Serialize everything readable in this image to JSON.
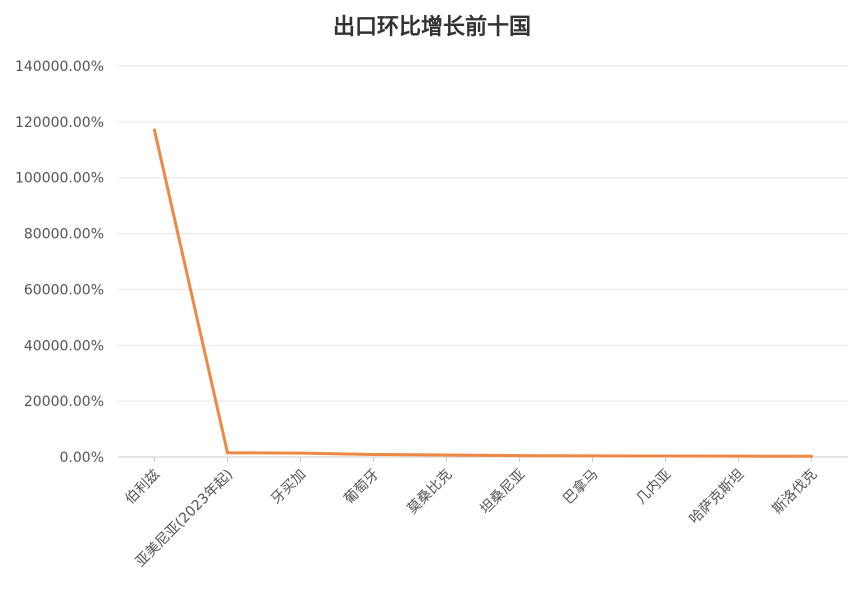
{
  "chart_data": {
    "type": "line",
    "title": "出口环比增长前十国",
    "xlabel": "",
    "ylabel": "",
    "categories": [
      "伯利兹",
      "亚美尼亚(2023年起)",
      "牙买加",
      "葡萄牙",
      "莫桑比克",
      "坦桑尼亚",
      "巴拿马",
      "几内亚",
      "哈萨克斯坦",
      "斯洛伐克"
    ],
    "series": [
      {
        "values": [
          117000,
          1500,
          1400,
          900,
          700,
          500,
          400,
          350,
          300,
          250
        ]
      }
    ],
    "yticks": [
      "0.00%",
      "20000.00%",
      "40000.00%",
      "60000.00%",
      "80000.00%",
      "100000.00%",
      "120000.00%",
      "140000.00%"
    ],
    "ylim": [
      0,
      140000
    ],
    "grid": true,
    "legend": "none",
    "line_color": "#ee8844"
  }
}
